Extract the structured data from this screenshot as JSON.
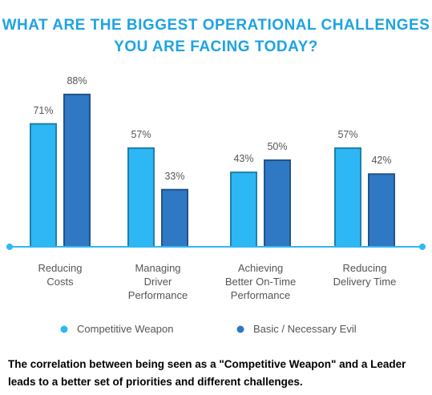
{
  "chart_data": {
    "type": "bar",
    "title": "WHAT ARE THE BIGGEST OPERATIONAL CHALLENGES\nYOU ARE FACING TODAY?",
    "categories": [
      "Reducing\nCosts",
      "Managing\nDriver\nPerformance",
      "Achieving\nBetter On-Time\nPerformance",
      "Reducing\nDelivery Time"
    ],
    "series": [
      {
        "name": "Competitive Weapon",
        "color": "#2db7f5",
        "values": [
          71,
          57,
          43,
          57
        ],
        "value_labels": [
          "71%",
          "57%",
          "43%",
          "57%"
        ]
      },
      {
        "name": "Basic / Necessary Evil",
        "color": "#2f78c4",
        "values": [
          88,
          33,
          50,
          42
        ],
        "value_labels": [
          "88%",
          "33%",
          "50%",
          "42%"
        ]
      }
    ],
    "ylim": [
      0,
      100
    ],
    "caption": "The correlation between being seen as a \"Competitive Weapon\" and a Leader leads to a better set of priorities and different challenges."
  }
}
